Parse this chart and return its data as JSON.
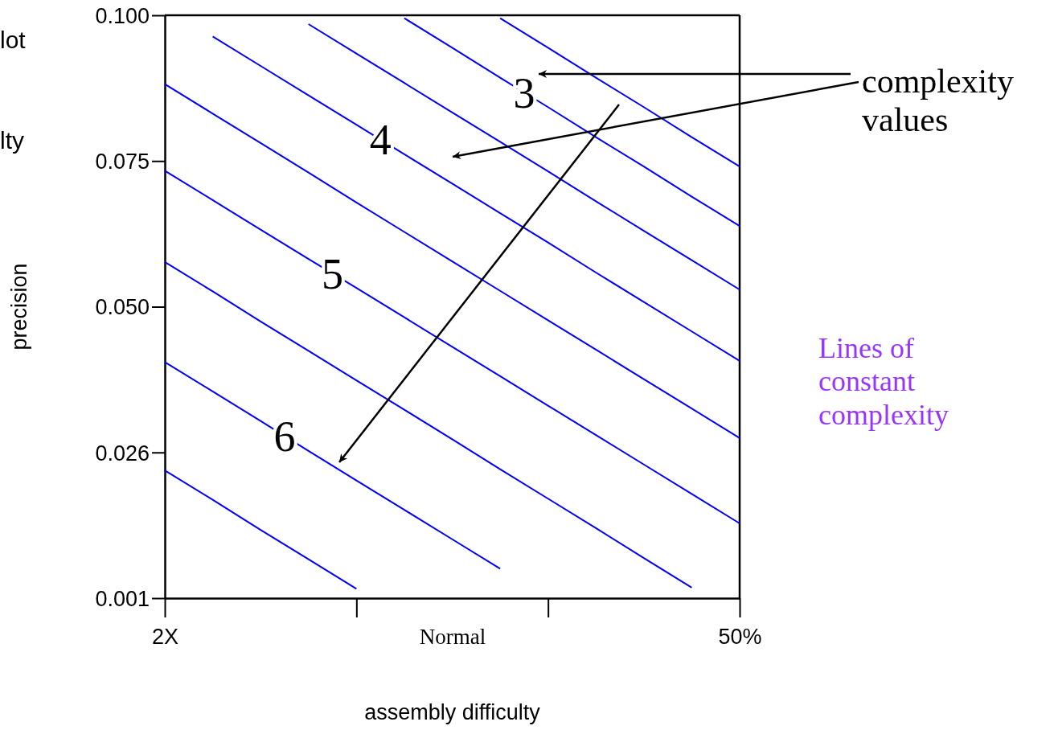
{
  "chart_data": {
    "type": "line",
    "xlabel": "assembly difficulty",
    "ylabel": "precision",
    "categories": [
      "2X",
      null,
      null,
      null,
      null,
      null,
      "Normal",
      null,
      null,
      null,
      null,
      null,
      "50%"
    ],
    "ylim": [
      0.001,
      0.1
    ],
    "yticks": [
      0.001,
      {
        "value": 0.02575,
        "label": "0.026"
      },
      {
        "value": 0.0505,
        "label": "0.050"
      },
      {
        "value": 0.07525,
        "label": "0.075"
      },
      {
        "value": 0.1,
        "label": "0.100"
      }
    ],
    "grid": false,
    "legend": false,
    "marker": "none",
    "line_style": "solid",
    "series": [
      {
        "color": "#0000ff",
        "values": [
          null,
          null,
          null,
          null,
          null,
          null,
          null,
          0.0995,
          0.0945,
          0.0894,
          0.0844,
          0.0793,
          0.0743
        ]
      },
      {
        "name": "3",
        "color": "#0000ff",
        "values": [
          null,
          null,
          null,
          null,
          null,
          0.0995,
          0.0945,
          0.0894,
          0.0844,
          0.0793,
          0.0743,
          0.0692,
          0.0642
        ]
      },
      {
        "color": "#0000ff",
        "values": [
          null,
          null,
          null,
          0.0985,
          0.0935,
          0.0885,
          0.0835,
          0.0785,
          0.0735,
          0.0684,
          0.0634,
          0.0584,
          0.0534
        ]
      },
      {
        "name": "4",
        "color": "#0000ff",
        "values": [
          null,
          0.0964,
          0.0914,
          0.0864,
          0.0814,
          0.0764,
          0.0714,
          0.0664,
          0.0614,
          0.0563,
          0.0513,
          0.0463,
          0.0413
        ]
      },
      {
        "color": "#0000ff",
        "values": [
          0.0883,
          0.0833,
          0.0783,
          0.0733,
          0.0682,
          0.0632,
          0.0582,
          0.0532,
          0.0482,
          0.0432,
          0.0382,
          0.0332,
          0.0282
        ]
      },
      {
        "name": "5",
        "color": "#0000ff",
        "values": [
          0.0736,
          0.0686,
          0.0636,
          0.0586,
          0.0537,
          0.0487,
          0.0437,
          0.0387,
          0.0337,
          0.0287,
          0.0237,
          0.0187,
          0.0137
        ]
      },
      {
        "color": "#0000ff",
        "values": [
          0.0581,
          0.0531,
          0.048,
          0.043,
          0.038,
          0.033,
          0.028,
          0.0229,
          0.0179,
          0.0129,
          0.0078,
          0.0028,
          null
        ]
      },
      {
        "name": "6",
        "color": "#0000ff",
        "values": [
          0.0411,
          0.0361,
          0.0311,
          0.026,
          0.021,
          0.016,
          0.011,
          0.006,
          null,
          null,
          null,
          null,
          null
        ]
      },
      {
        "color": "#0000ff",
        "values": [
          0.0227,
          0.0177,
          0.0126,
          0.0076,
          0.0026,
          null,
          null,
          null,
          null,
          null,
          null,
          null,
          null
        ]
      }
    ],
    "annotations": [
      "lot",
      "lty",
      "complexity values",
      "Lines of constant complexity"
    ]
  }
}
